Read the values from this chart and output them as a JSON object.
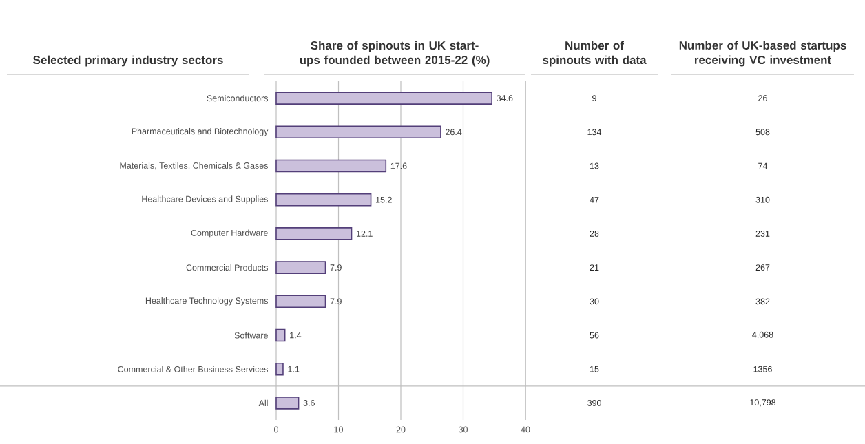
{
  "chart_data": [
    {
      "type": "bar",
      "orientation": "horizontal",
      "title": "Share of spinouts in UK start-ups founded between 2015-22 (%)",
      "ylabel": "Selected primary industry sectors",
      "categories": [
        "Semiconductors",
        "Pharmaceuticals and Biotechnology",
        "Materials, Textiles, Chemicals & Gases",
        "Healthcare Devices and Supplies",
        "Computer Hardware",
        "Commercial Products",
        "Healthcare Technology Systems",
        "Software",
        "Commercial & Other Business Services",
        "All"
      ],
      "values": [
        34.6,
        26.4,
        17.6,
        15.2,
        12.1,
        7.9,
        7.9,
        1.4,
        1.1,
        3.6
      ],
      "color": "#cbc0dc",
      "xlim": [
        0,
        40
      ],
      "xticks": [
        0,
        10,
        20,
        30,
        40
      ],
      "grid": "x",
      "data_labels": true
    },
    {
      "type": "other",
      "title": "Number of spinouts with data",
      "annotations": [
        "9",
        "134",
        "13",
        "47",
        "28",
        "21",
        "30",
        "56",
        "15",
        "390"
      ]
    },
    {
      "type": "other",
      "title": "Number of UK-based startups receiving VC investment",
      "annotations": [
        "26",
        "508",
        "74",
        "310",
        "231",
        "267",
        "382",
        "4,068",
        "1356",
        "10,798"
      ]
    }
  ]
}
